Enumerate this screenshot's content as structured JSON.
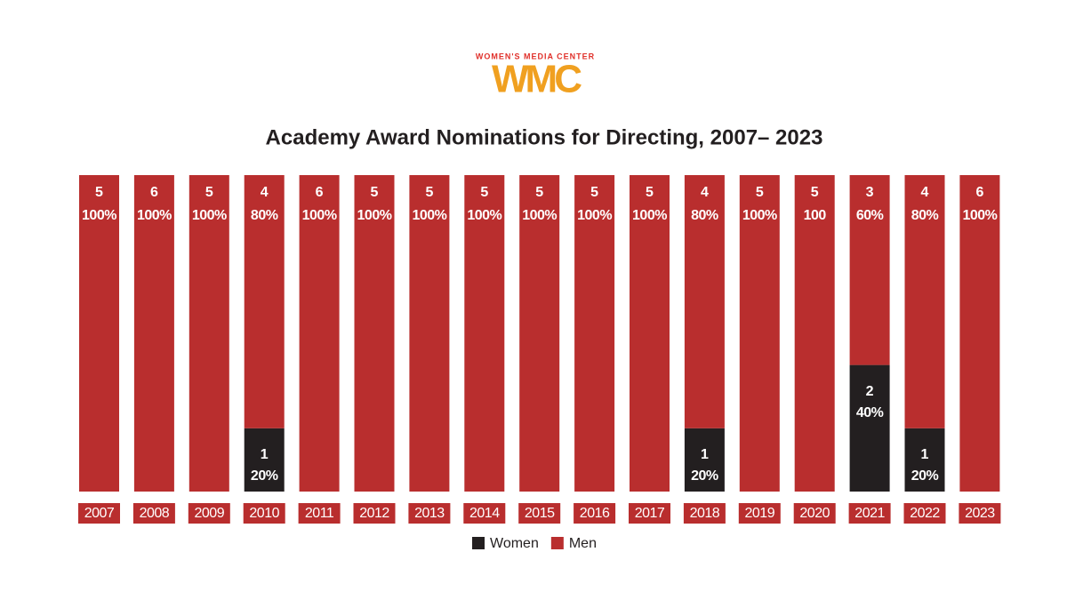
{
  "logo": {
    "tagline": "WOMEN'S MEDIA CENTER",
    "mark": "WMC"
  },
  "chart_data": {
    "type": "stacked-bar",
    "title": "Academy Award Nominations for Directing, 2007– 2023",
    "categories": [
      "2007",
      "2008",
      "2009",
      "2010",
      "2011",
      "2012",
      "2013",
      "2014",
      "2015",
      "2016",
      "2017",
      "2018",
      "2019",
      "2020",
      "2021",
      "2022",
      "2023"
    ],
    "ylim": [
      0,
      100
    ],
    "series": [
      {
        "name": "Women",
        "color": "#231f20",
        "values": [
          0,
          0,
          0,
          20,
          0,
          0,
          0,
          0,
          0,
          0,
          0,
          20,
          0,
          0,
          40,
          20,
          0
        ],
        "value_labels": [
          null,
          null,
          null,
          "20%",
          null,
          null,
          null,
          null,
          null,
          null,
          null,
          "20%",
          null,
          null,
          "40%",
          "20%",
          null
        ],
        "counts": [
          null,
          null,
          null,
          1,
          null,
          null,
          null,
          null,
          null,
          null,
          null,
          1,
          null,
          null,
          2,
          1,
          null
        ]
      },
      {
        "name": "Men",
        "color": "#b92e2e",
        "values": [
          100,
          100,
          100,
          80,
          100,
          100,
          100,
          100,
          100,
          100,
          100,
          80,
          100,
          100,
          60,
          80,
          100
        ],
        "value_labels": [
          "100%",
          "100%",
          "100%",
          "80%",
          "100%",
          "100%",
          "100%",
          "100%",
          "100%",
          "100%",
          "100%",
          "80%",
          "100%",
          "100",
          "60%",
          "80%",
          "100%"
        ],
        "counts": [
          5,
          6,
          5,
          4,
          6,
          5,
          5,
          5,
          5,
          5,
          5,
          4,
          5,
          5,
          3,
          4,
          6
        ]
      }
    ]
  }
}
